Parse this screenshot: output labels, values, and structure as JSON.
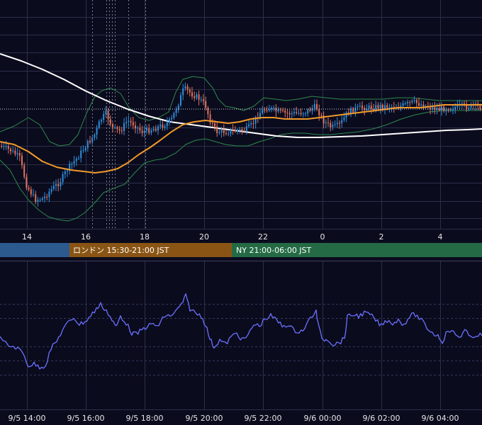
{
  "colors": {
    "background": "#0b0b1e",
    "grid": "#2a2f48",
    "grid_dotted": "#33385a",
    "session_line": "#9aa0b4",
    "candle_up": "#2f8fd9",
    "candle_down": "#e0735a",
    "bb_band": "#2c8a4a",
    "ma_orange": "#f09a2a",
    "ma_white": "#ffffff",
    "rsi_line": "#6a72ff",
    "axis_text": "#e6e6e6",
    "tokyo": "#2c5a8f",
    "london": "#8a5514",
    "newyork": "#246b45"
  },
  "price_axis_labels": [
    "14",
    "16",
    "18",
    "20",
    "22",
    "0",
    "2",
    "4"
  ],
  "sessions": [
    {
      "label": "",
      "color": "#2c5a8f"
    },
    {
      "label": "ロンドン 15:30-21:00 JST",
      "color": "#8a5514"
    },
    {
      "label": "NY 21:00-06:00 JST",
      "color": "#246b45"
    }
  ],
  "rsi_axis_labels": [
    "9/5 14:00",
    "9/5 16:00",
    "9/5 18:00",
    "9/5 20:00",
    "9/5 22:00",
    "9/6 00:00",
    "9/6 02:00",
    "9/6 04:00"
  ],
  "chart_data": [
    {
      "type": "candlestick",
      "x_hours": [
        12.5,
        21.0
      ],
      "time_axis_labels": [
        "14",
        "16",
        "18",
        "20",
        "22",
        "0",
        "2",
        "4"
      ],
      "series": [
        {
          "kind": "candles"
        },
        {
          "kind": "bollinger_bands"
        },
        {
          "kind": "moving_average",
          "color": "orange"
        },
        {
          "kind": "moving_average",
          "color": "white"
        }
      ],
      "current_price_line": "dotted",
      "grid": true
    },
    {
      "type": "line",
      "series": [
        {
          "kind": "oscillator"
        }
      ],
      "time_axis_labels": [
        "9/5 14:00",
        "9/5 16:00",
        "9/5 18:00",
        "9/5 20:00",
        "9/5 22:00",
        "9/6 00:00",
        "9/6 02:00",
        "9/6 04:00"
      ],
      "grid": true
    }
  ]
}
